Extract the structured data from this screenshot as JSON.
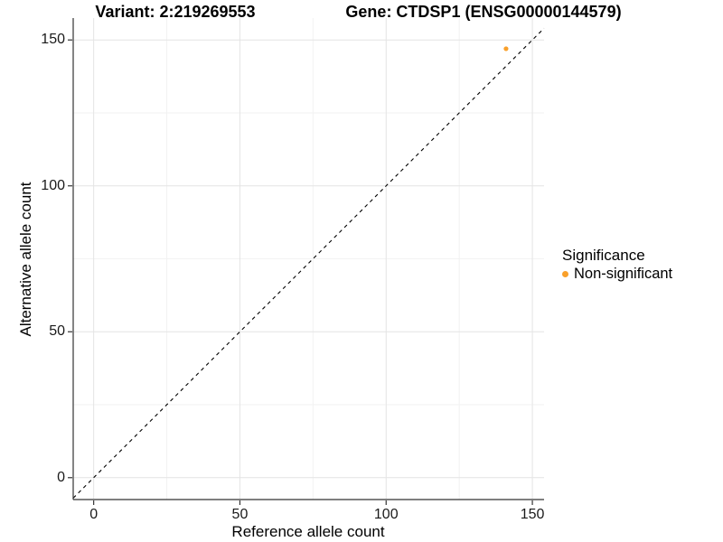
{
  "chart_data": {
    "type": "scatter",
    "title_left": "Variant: 2:219269553",
    "title_right": "Gene: CTDSP1 (ENSG00000144579)",
    "xlabel": "Reference allele count",
    "ylabel": "Alternative allele count",
    "xlim": [
      -7,
      154
    ],
    "ylim": [
      -7.5,
      157.5
    ],
    "x_ticks": [
      0,
      50,
      100,
      150
    ],
    "y_ticks": [
      0,
      50,
      100,
      150
    ],
    "grid": {
      "major": true,
      "minor": true
    },
    "identity_line": {
      "style": "dashed",
      "equation": "y = x",
      "color": "#000000"
    },
    "series": [
      {
        "name": "Non-significant",
        "color": "#F9A02B",
        "points": [
          [
            141,
            147
          ]
        ],
        "point_radius": 2.6
      }
    ],
    "legend": {
      "title": "Significance",
      "position": "right"
    }
  },
  "colors": {
    "grid_major": "#E4E4E4",
    "grid_minor": "#F2F2F2",
    "axis_line": "#333333",
    "tick_mark": "#333333",
    "point_orange": "#F9A02B"
  }
}
